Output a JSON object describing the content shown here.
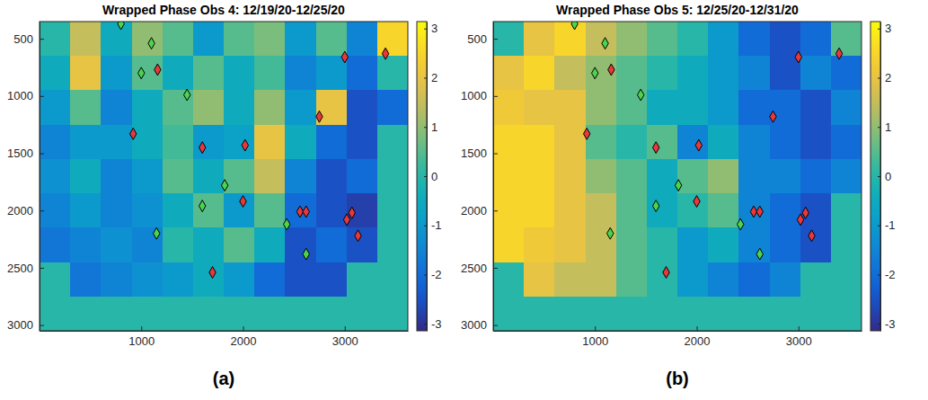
{
  "chart_data": [
    {
      "type": "heatmap",
      "title": "Wrapped Phase Obs 4: 12/19/20-12/25/20",
      "panel_label": "(a)",
      "xlim": [
        0,
        3620
      ],
      "ylim": [
        350,
        3050
      ],
      "xticks": [
        1000,
        2000,
        3000
      ],
      "yticks": [
        500,
        1000,
        1500,
        2000,
        2500,
        3000
      ],
      "x_edges": [
        0,
        302,
        603,
        905,
        1207,
        1508,
        1810,
        2112,
        2413,
        2715,
        3017,
        3318,
        3620
      ],
      "y_edges": [
        350,
        650,
        950,
        1250,
        1550,
        1850,
        2150,
        2450,
        2750,
        3050
      ],
      "cells": [
        [
          0,
          1.5,
          -0.5,
          1,
          0.5,
          -1,
          0.5,
          0.8,
          -1,
          0.5,
          -1.5,
          2.5
        ],
        [
          -0.5,
          2,
          -1,
          0.5,
          -0.5,
          0.5,
          -0.5,
          0.3,
          -1.5,
          -1,
          -2,
          0
        ],
        [
          -1,
          0.5,
          -1.5,
          -0.5,
          0.5,
          1,
          -0.5,
          1,
          -1,
          2,
          -2.5,
          -2
        ],
        [
          -1.5,
          -1,
          -1,
          -0.5,
          0.3,
          -1,
          -0.8,
          2,
          -0.5,
          -2,
          -2.5,
          0
        ],
        [
          -1.2,
          -0.5,
          -1.5,
          -1,
          0.5,
          -0.5,
          0.5,
          1.5,
          -1.5,
          -2.5,
          -2,
          0
        ],
        [
          -1.5,
          -1,
          -1.5,
          -1.2,
          -0.5,
          0.5,
          -1,
          0.5,
          -2,
          -2.5,
          -2.8,
          0
        ],
        [
          -1.8,
          -1.5,
          -1.2,
          -1.5,
          0,
          -0.5,
          0.5,
          -0.5,
          -2.5,
          -2,
          -2.5,
          0
        ],
        [
          0,
          -1.8,
          -1.5,
          -1.2,
          -1,
          -0.5,
          -1,
          -2,
          -2.5,
          -2.5,
          0,
          0
        ],
        [
          0,
          0,
          0,
          0,
          0,
          0,
          0,
          0,
          0,
          0,
          0,
          0
        ]
      ],
      "colorbar": {
        "range": [
          -3.1416,
          3.1416
        ],
        "ticks": [
          -3,
          -2,
          -1,
          0,
          1,
          2,
          3
        ]
      },
      "series": [
        {
          "color": "#4cd44c",
          "marker": "diamond",
          "x": [
            800,
            1100,
            1000,
            1450,
            1820,
            1600,
            1150,
            2430,
            2620
          ],
          "values": [
            370,
            540,
            800,
            990,
            1780,
            1960,
            2200,
            2120,
            2380
          ]
        },
        {
          "color": "#e8383d",
          "marker": "diamond",
          "x": [
            1160,
            3000,
            3400,
            920,
            2750,
            1600,
            2020,
            2000,
            2560,
            2620,
            3070,
            3020,
            3130,
            1700
          ],
          "values": [
            770,
            660,
            630,
            1330,
            1180,
            1450,
            1430,
            1920,
            2010,
            2010,
            2020,
            2080,
            2220,
            2540
          ]
        }
      ]
    },
    {
      "type": "heatmap",
      "title": "Wrapped Phase Obs 5: 12/25/20-12/31/20",
      "panel_label": "(b)",
      "xlim": [
        0,
        3620
      ],
      "ylim": [
        350,
        3050
      ],
      "xticks": [
        1000,
        2000,
        3000
      ],
      "yticks": [
        500,
        1000,
        1500,
        2000,
        2500,
        3000
      ],
      "x_edges": [
        0,
        302,
        603,
        905,
        1207,
        1508,
        1810,
        2112,
        2413,
        2715,
        3017,
        3318,
        3620
      ],
      "y_edges": [
        350,
        650,
        950,
        1250,
        1550,
        1850,
        2150,
        2450,
        2750,
        3050
      ],
      "cells": [
        [
          0,
          2,
          2.5,
          1.5,
          1,
          0.5,
          0,
          -1,
          -2,
          -2.5,
          -2,
          0.5
        ],
        [
          2,
          2.5,
          1.5,
          1,
          0.5,
          0,
          -0.5,
          -1,
          -1.5,
          -2.5,
          -1.5,
          -2
        ],
        [
          2.2,
          2,
          2,
          1,
          0.5,
          -0.5,
          -0.5,
          -1,
          -2,
          -2,
          -2.5,
          -1.5
        ],
        [
          2.5,
          2.5,
          2,
          0.5,
          0,
          0.5,
          -1.5,
          -0.5,
          -1.5,
          -2,
          -2.5,
          -2
        ],
        [
          2.5,
          2.5,
          2,
          1,
          0.5,
          -0.5,
          0.5,
          1,
          -1.5,
          -1.5,
          -2,
          -1.5
        ],
        [
          2.5,
          2.5,
          2,
          1.5,
          0.5,
          -0.5,
          0,
          0.5,
          -1.5,
          -2,
          -2.5,
          0
        ],
        [
          2.5,
          2.2,
          2,
          1.5,
          0.5,
          0,
          -1,
          -0.5,
          -1.5,
          -2,
          -2.5,
          0
        ],
        [
          0,
          2,
          1.5,
          1.5,
          0.5,
          0,
          -1,
          -1.5,
          -2,
          -1.5,
          0,
          0
        ],
        [
          0,
          0,
          0,
          0,
          0,
          0,
          0,
          0,
          0,
          0,
          0,
          0
        ]
      ],
      "colorbar": {
        "range": [
          -3.1416,
          3.1416
        ],
        "ticks": [
          -3,
          -2,
          -1,
          0,
          1,
          2,
          3
        ]
      },
      "series": [
        {
          "color": "#4cd44c",
          "marker": "diamond",
          "x": [
            800,
            1100,
            1000,
            1450,
            1820,
            1600,
            1150,
            2430,
            2620
          ],
          "values": [
            370,
            540,
            800,
            990,
            1780,
            1960,
            2200,
            2120,
            2380
          ]
        },
        {
          "color": "#e8383d",
          "marker": "diamond",
          "x": [
            1160,
            3000,
            3400,
            920,
            2750,
            1600,
            2020,
            2000,
            2560,
            2620,
            3070,
            3020,
            3130,
            1700
          ],
          "values": [
            770,
            660,
            630,
            1330,
            1180,
            1450,
            1430,
            1920,
            2010,
            2010,
            2020,
            2080,
            2220,
            2540
          ]
        }
      ]
    }
  ]
}
